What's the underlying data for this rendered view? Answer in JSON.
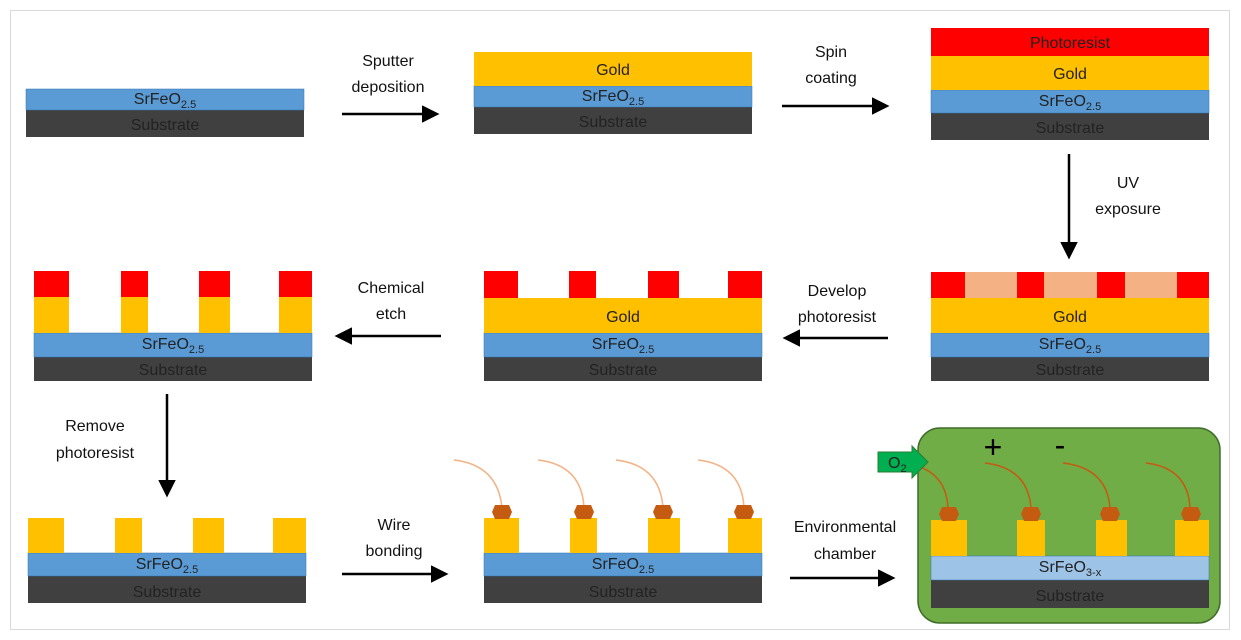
{
  "layers": {
    "substrate": "Substrate",
    "film_base": "SrFeO",
    "film_sub": "2.5",
    "film_sub_reduced": "3-x",
    "gold": "Gold",
    "photoresist": "Photoresist"
  },
  "steps": {
    "sputter": [
      "Sputter",
      "deposition"
    ],
    "spin": [
      "Spin",
      "coating"
    ],
    "uv": [
      "UV",
      "exposure"
    ],
    "develop": [
      "Develop",
      "photoresist"
    ],
    "etch": [
      "Chemical",
      "etch"
    ],
    "remove": [
      "Remove",
      "photoresist"
    ],
    "wire": [
      "Wire",
      "bonding"
    ],
    "env": [
      "Environmental",
      "chamber"
    ]
  },
  "chamber": {
    "gas_base": "O",
    "gas_sub": "2",
    "plus": "+",
    "minus": "-"
  },
  "colors": {
    "substrate": "#404040",
    "film": "#5b9bd5",
    "film_reduced": "#9dc3e6",
    "gold": "#ffc000",
    "photoresist": "#ff0000",
    "exposed_resist": "#f4b183",
    "chamber": "#70ad47",
    "bond": "#c55a11",
    "arrow_green": "#00b050"
  }
}
